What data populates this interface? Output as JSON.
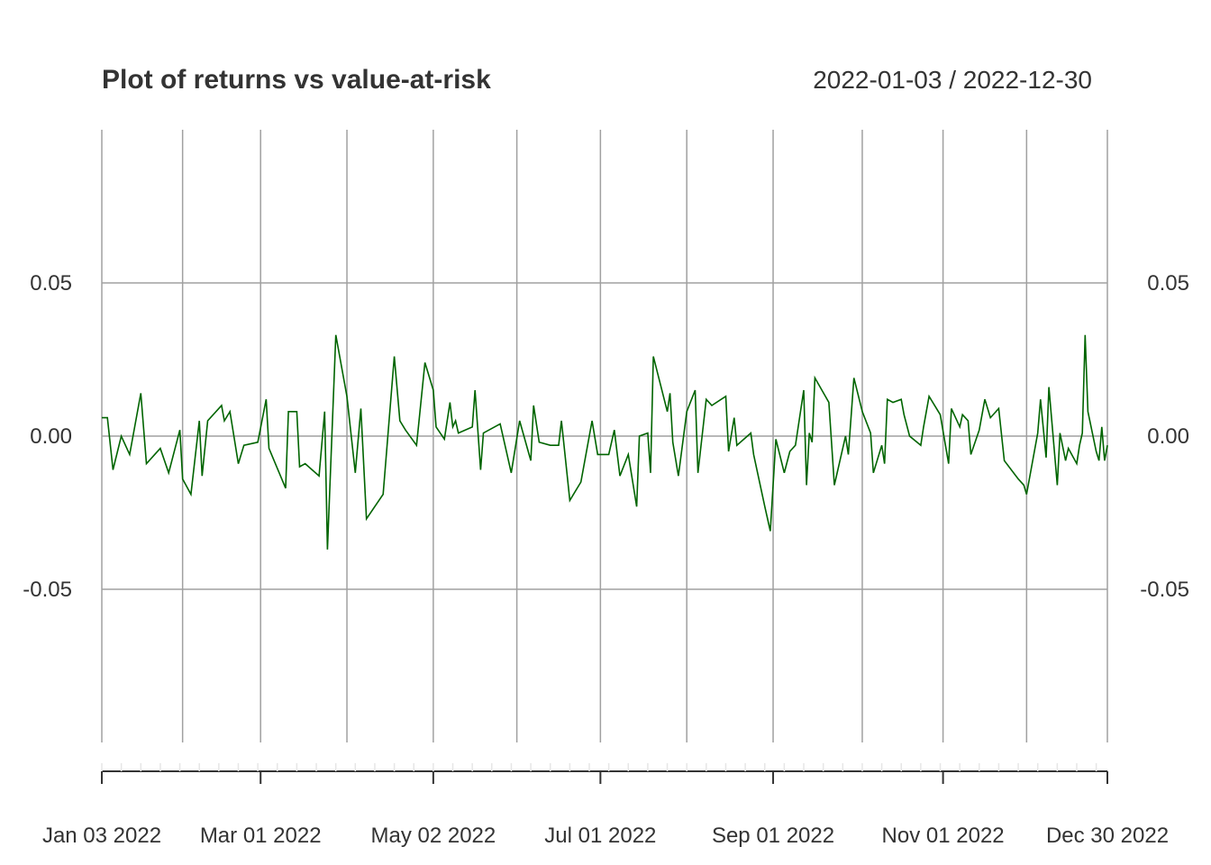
{
  "chart_data": {
    "type": "line",
    "title": "Plot of returns vs value-at-risk",
    "date_range": "2022-01-03 / 2022-12-30",
    "x_start": "2022-01-03",
    "x_end": "2022-12-30",
    "ylim": [
      -0.1,
      0.1
    ],
    "y_ticks": [
      {
        "value": 0.05,
        "label": "0.05"
      },
      {
        "value": 0.0,
        "label": "0.00"
      },
      {
        "value": -0.05,
        "label": "-0.05"
      }
    ],
    "x_ticks": [
      {
        "date": "2022-01-03",
        "label": "Jan 03 2022"
      },
      {
        "date": "2022-03-01",
        "label": "Mar 01 2022"
      },
      {
        "date": "2022-05-02",
        "label": "May 02 2022"
      },
      {
        "date": "2022-07-01",
        "label": "Jul 01 2022"
      },
      {
        "date": "2022-09-01",
        "label": "Sep 01 2022"
      },
      {
        "date": "2022-11-01",
        "label": "Nov 01 2022"
      },
      {
        "date": "2022-12-30",
        "label": "Dec 30 2022"
      }
    ],
    "gridlines_x": [
      "2022-01-03",
      "2022-02-01",
      "2022-03-01",
      "2022-04-01",
      "2022-05-02",
      "2022-06-01",
      "2022-07-01",
      "2022-08-01",
      "2022-09-01",
      "2022-10-03",
      "2022-11-01",
      "2022-12-01",
      "2022-12-30"
    ],
    "grid": true,
    "series_color": "#006400",
    "grid_color": "#a0a0a0",
    "series": [
      {
        "values": [
          {
            "x": "2022-01-03",
            "y": 0.006
          },
          {
            "x": "2022-01-05",
            "y": 0.006
          },
          {
            "x": "2022-01-07",
            "y": -0.011
          },
          {
            "x": "2022-01-10",
            "y": 0.0
          },
          {
            "x": "2022-01-13",
            "y": -0.006
          },
          {
            "x": "2022-01-17",
            "y": 0.014
          },
          {
            "x": "2022-01-19",
            "y": -0.009
          },
          {
            "x": "2022-01-24",
            "y": -0.004
          },
          {
            "x": "2022-01-27",
            "y": -0.012
          },
          {
            "x": "2022-01-31",
            "y": 0.002
          },
          {
            "x": "2022-02-01",
            "y": -0.014
          },
          {
            "x": "2022-02-04",
            "y": -0.019
          },
          {
            "x": "2022-02-07",
            "y": 0.005
          },
          {
            "x": "2022-02-08",
            "y": -0.013
          },
          {
            "x": "2022-02-10",
            "y": 0.005
          },
          {
            "x": "2022-02-15",
            "y": 0.01
          },
          {
            "x": "2022-02-16",
            "y": 0.005
          },
          {
            "x": "2022-02-18",
            "y": 0.008
          },
          {
            "x": "2022-02-21",
            "y": -0.009
          },
          {
            "x": "2022-02-23",
            "y": -0.003
          },
          {
            "x": "2022-02-28",
            "y": -0.002
          },
          {
            "x": "2022-03-03",
            "y": 0.012
          },
          {
            "x": "2022-03-04",
            "y": -0.004
          },
          {
            "x": "2022-03-10",
            "y": -0.017
          },
          {
            "x": "2022-03-11",
            "y": 0.008
          },
          {
            "x": "2022-03-14",
            "y": 0.008
          },
          {
            "x": "2022-03-15",
            "y": -0.01
          },
          {
            "x": "2022-03-17",
            "y": -0.009
          },
          {
            "x": "2022-03-22",
            "y": -0.013
          },
          {
            "x": "2022-03-24",
            "y": 0.008
          },
          {
            "x": "2022-03-25",
            "y": -0.037
          },
          {
            "x": "2022-03-28",
            "y": 0.033
          },
          {
            "x": "2022-04-01",
            "y": 0.013
          },
          {
            "x": "2022-04-04",
            "y": -0.012
          },
          {
            "x": "2022-04-06",
            "y": 0.009
          },
          {
            "x": "2022-04-08",
            "y": -0.027
          },
          {
            "x": "2022-04-14",
            "y": -0.019
          },
          {
            "x": "2022-04-18",
            "y": 0.026
          },
          {
            "x": "2022-04-20",
            "y": 0.005
          },
          {
            "x": "2022-04-22",
            "y": 0.002
          },
          {
            "x": "2022-04-26",
            "y": -0.003
          },
          {
            "x": "2022-04-29",
            "y": 0.024
          },
          {
            "x": "2022-05-02",
            "y": 0.015
          },
          {
            "x": "2022-05-03",
            "y": 0.003
          },
          {
            "x": "2022-05-06",
            "y": -0.001
          },
          {
            "x": "2022-05-08",
            "y": 0.011
          },
          {
            "x": "2022-05-09",
            "y": 0.003
          },
          {
            "x": "2022-05-10",
            "y": 0.005
          },
          {
            "x": "2022-05-11",
            "y": 0.001
          },
          {
            "x": "2022-05-16",
            "y": 0.003
          },
          {
            "x": "2022-05-17",
            "y": 0.015
          },
          {
            "x": "2022-05-19",
            "y": -0.011
          },
          {
            "x": "2022-05-20",
            "y": 0.001
          },
          {
            "x": "2022-05-26",
            "y": 0.004
          },
          {
            "x": "2022-05-30",
            "y": -0.012
          },
          {
            "x": "2022-06-02",
            "y": 0.005
          },
          {
            "x": "2022-06-06",
            "y": -0.008
          },
          {
            "x": "2022-06-07",
            "y": 0.01
          },
          {
            "x": "2022-06-09",
            "y": -0.002
          },
          {
            "x": "2022-06-13",
            "y": -0.003
          },
          {
            "x": "2022-06-16",
            "y": -0.003
          },
          {
            "x": "2022-06-17",
            "y": 0.005
          },
          {
            "x": "2022-06-20",
            "y": -0.021
          },
          {
            "x": "2022-06-24",
            "y": -0.015
          },
          {
            "x": "2022-06-28",
            "y": 0.005
          },
          {
            "x": "2022-06-30",
            "y": -0.006
          },
          {
            "x": "2022-07-04",
            "y": -0.006
          },
          {
            "x": "2022-07-06",
            "y": 0.002
          },
          {
            "x": "2022-07-08",
            "y": -0.013
          },
          {
            "x": "2022-07-11",
            "y": -0.006
          },
          {
            "x": "2022-07-14",
            "y": -0.023
          },
          {
            "x": "2022-07-15",
            "y": 0.0
          },
          {
            "x": "2022-07-18",
            "y": 0.001
          },
          {
            "x": "2022-07-19",
            "y": -0.012
          },
          {
            "x": "2022-07-20",
            "y": 0.026
          },
          {
            "x": "2022-07-25",
            "y": 0.008
          },
          {
            "x": "2022-07-26",
            "y": 0.014
          },
          {
            "x": "2022-07-27",
            "y": -0.002
          },
          {
            "x": "2022-07-29",
            "y": -0.013
          },
          {
            "x": "2022-08-01",
            "y": 0.008
          },
          {
            "x": "2022-08-04",
            "y": 0.015
          },
          {
            "x": "2022-08-05",
            "y": -0.012
          },
          {
            "x": "2022-08-08",
            "y": 0.012
          },
          {
            "x": "2022-08-10",
            "y": 0.01
          },
          {
            "x": "2022-08-15",
            "y": 0.013
          },
          {
            "x": "2022-08-16",
            "y": -0.005
          },
          {
            "x": "2022-08-18",
            "y": 0.006
          },
          {
            "x": "2022-08-19",
            "y": -0.003
          },
          {
            "x": "2022-08-24",
            "y": 0.001
          },
          {
            "x": "2022-08-25",
            "y": -0.006
          },
          {
            "x": "2022-08-29",
            "y": -0.023
          },
          {
            "x": "2022-08-31",
            "y": -0.031
          },
          {
            "x": "2022-09-02",
            "y": -0.001
          },
          {
            "x": "2022-09-05",
            "y": -0.012
          },
          {
            "x": "2022-09-07",
            "y": -0.005
          },
          {
            "x": "2022-09-09",
            "y": -0.003
          },
          {
            "x": "2022-09-12",
            "y": 0.015
          },
          {
            "x": "2022-09-13",
            "y": -0.016
          },
          {
            "x": "2022-09-14",
            "y": 0.001
          },
          {
            "x": "2022-09-15",
            "y": -0.002
          },
          {
            "x": "2022-09-16",
            "y": 0.019
          },
          {
            "x": "2022-09-21",
            "y": 0.011
          },
          {
            "x": "2022-09-23",
            "y": -0.016
          },
          {
            "x": "2022-09-27",
            "y": 0.0
          },
          {
            "x": "2022-09-28",
            "y": -0.006
          },
          {
            "x": "2022-09-30",
            "y": 0.019
          },
          {
            "x": "2022-10-03",
            "y": 0.008
          },
          {
            "x": "2022-10-06",
            "y": 0.001
          },
          {
            "x": "2022-10-07",
            "y": -0.012
          },
          {
            "x": "2022-10-10",
            "y": -0.003
          },
          {
            "x": "2022-10-11",
            "y": -0.009
          },
          {
            "x": "2022-10-12",
            "y": 0.012
          },
          {
            "x": "2022-10-14",
            "y": 0.011
          },
          {
            "x": "2022-10-17",
            "y": 0.012
          },
          {
            "x": "2022-10-18",
            "y": 0.007
          },
          {
            "x": "2022-10-20",
            "y": 0.0
          },
          {
            "x": "2022-10-24",
            "y": -0.003
          },
          {
            "x": "2022-10-25",
            "y": 0.003
          },
          {
            "x": "2022-10-27",
            "y": 0.013
          },
          {
            "x": "2022-10-31",
            "y": 0.007
          },
          {
            "x": "2022-11-03",
            "y": -0.009
          },
          {
            "x": "2022-11-04",
            "y": 0.009
          },
          {
            "x": "2022-11-07",
            "y": 0.003
          },
          {
            "x": "2022-11-08",
            "y": 0.007
          },
          {
            "x": "2022-11-10",
            "y": 0.005
          },
          {
            "x": "2022-11-11",
            "y": -0.006
          },
          {
            "x": "2022-11-14",
            "y": 0.002
          },
          {
            "x": "2022-11-16",
            "y": 0.012
          },
          {
            "x": "2022-11-18",
            "y": 0.006
          },
          {
            "x": "2022-11-21",
            "y": 0.009
          },
          {
            "x": "2022-11-23",
            "y": -0.008
          },
          {
            "x": "2022-11-28",
            "y": -0.014
          },
          {
            "x": "2022-11-30",
            "y": -0.016
          },
          {
            "x": "2022-12-01",
            "y": -0.019
          },
          {
            "x": "2022-12-05",
            "y": 0.001
          },
          {
            "x": "2022-12-06",
            "y": 0.012
          },
          {
            "x": "2022-12-08",
            "y": -0.007
          },
          {
            "x": "2022-12-09",
            "y": 0.016
          },
          {
            "x": "2022-12-12",
            "y": -0.016
          },
          {
            "x": "2022-12-13",
            "y": 0.001
          },
          {
            "x": "2022-12-15",
            "y": -0.008
          },
          {
            "x": "2022-12-16",
            "y": -0.004
          },
          {
            "x": "2022-12-19",
            "y": -0.009
          },
          {
            "x": "2022-12-20",
            "y": -0.003
          },
          {
            "x": "2022-12-21",
            "y": 0.001
          },
          {
            "x": "2022-12-22",
            "y": 0.033
          },
          {
            "x": "2022-12-23",
            "y": 0.008
          },
          {
            "x": "2022-12-26",
            "y": -0.005
          },
          {
            "x": "2022-12-27",
            "y": -0.008
          },
          {
            "x": "2022-12-28",
            "y": 0.003
          },
          {
            "x": "2022-12-29",
            "y": -0.008
          },
          {
            "x": "2022-12-30",
            "y": -0.003
          }
        ]
      }
    ]
  }
}
